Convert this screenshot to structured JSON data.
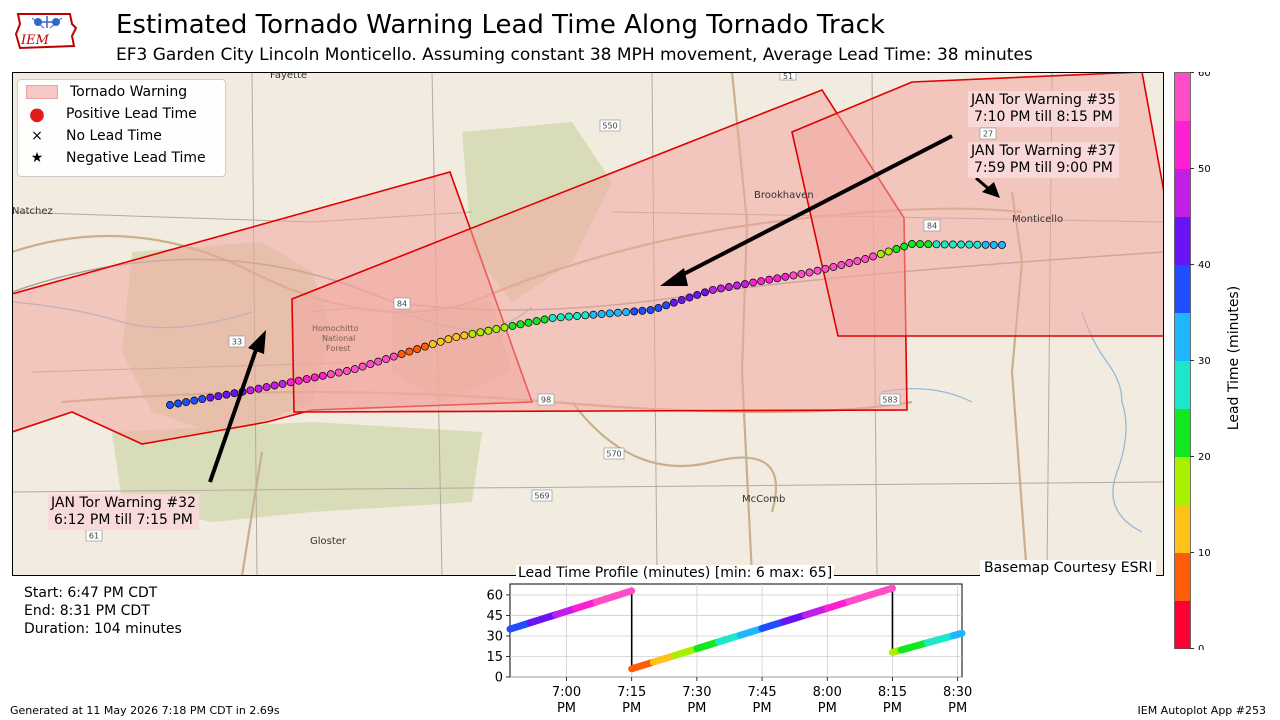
{
  "header": {
    "title": "Estimated Tornado Warning Lead Time Along Tornado Track",
    "subtitle": "EF3 Garden City Lincoln Monticello. Assuming constant 38 MPH movement, Average Lead Time: 38 minutes",
    "logo_text": "IEM"
  },
  "legend": {
    "items": [
      {
        "symbol": "patch",
        "label": "Tornado Warning"
      },
      {
        "symbol": "●",
        "label": "Positive Lead Time",
        "color": "#e31a1c"
      },
      {
        "symbol": "×",
        "label": "No Lead Time"
      },
      {
        "symbol": "★",
        "label": "Negative Lead Time"
      }
    ]
  },
  "map": {
    "places": [
      "Fayette",
      "Natchez",
      "Brookhaven",
      "Monticello",
      "McComb",
      "Gloster",
      "Homochitto",
      "National",
      "Forest"
    ],
    "road_shields": [
      "550",
      "84",
      "84",
      "27",
      "33",
      "98",
      "583",
      "570",
      "569",
      "61",
      "51"
    ],
    "warning_labels": [
      {
        "line1": "JAN Tor Warning #35",
        "line2": "7:10 PM till 8:15 PM"
      },
      {
        "line1": "JAN Tor Warning #37",
        "line2": "7:59 PM till 9:00 PM"
      },
      {
        "line1": "JAN Tor Warning #32",
        "line2": "6:12 PM till 7:15 PM"
      }
    ],
    "basemap_credit": "Basemap Courtesy ESRI"
  },
  "colors": {
    "warning_fill": "#f2a7a0",
    "warning_edge": "#e00000",
    "map_background": "#f1ecdf",
    "forest": "#d9dcb9"
  },
  "colorbar": {
    "label": "Lead Time (minutes)",
    "ticks": [
      "0",
      "10",
      "20",
      "30",
      "40",
      "50",
      "60"
    ],
    "colors": [
      "#ff0033",
      "#ff5c0a",
      "#ffc21a",
      "#a6f000",
      "#12e820",
      "#1ee6c8",
      "#1fb5ff",
      "#1f4dff",
      "#6a14f5",
      "#c21fe6",
      "#ff1fd2",
      "#ff4dc8"
    ]
  },
  "stats": {
    "start": "Start: 6:47 PM CDT",
    "end": "End: 8:31 PM CDT",
    "duration": "Duration: 104 minutes"
  },
  "chart_data": {
    "type": "line",
    "title": "Lead Time Profile (minutes) [min: 6 max: 65]",
    "xlabel": "",
    "ylabel": "",
    "x_ticks": [
      "7:00 PM",
      "7:15 PM",
      "7:30 PM",
      "7:45 PM",
      "8:00 PM",
      "8:15 PM",
      "8:30 PM"
    ],
    "y_ticks": [
      0,
      15,
      30,
      45,
      60
    ],
    "ylim": [
      0,
      68
    ],
    "xlim": [
      "6:47 PM",
      "8:31 PM"
    ],
    "grid": true,
    "series": [
      {
        "x": [
          "6:47 PM",
          "7:15 PM"
        ],
        "y": [
          35,
          63
        ]
      },
      {
        "x": [
          "7:15 PM",
          "8:15 PM"
        ],
        "y": [
          6,
          65
        ]
      },
      {
        "x": [
          "8:15 PM",
          "8:31 PM"
        ],
        "y": [
          18,
          32
        ]
      }
    ],
    "drops": [
      {
        "x": "7:15 PM",
        "from": 63,
        "to": 6
      },
      {
        "x": "8:15 PM",
        "from": 65,
        "to": 18
      }
    ]
  },
  "footer": {
    "generated": "Generated at 11 May 2026 7:18 PM CDT in 2.69s",
    "app": "IEM Autoplot App #253"
  }
}
